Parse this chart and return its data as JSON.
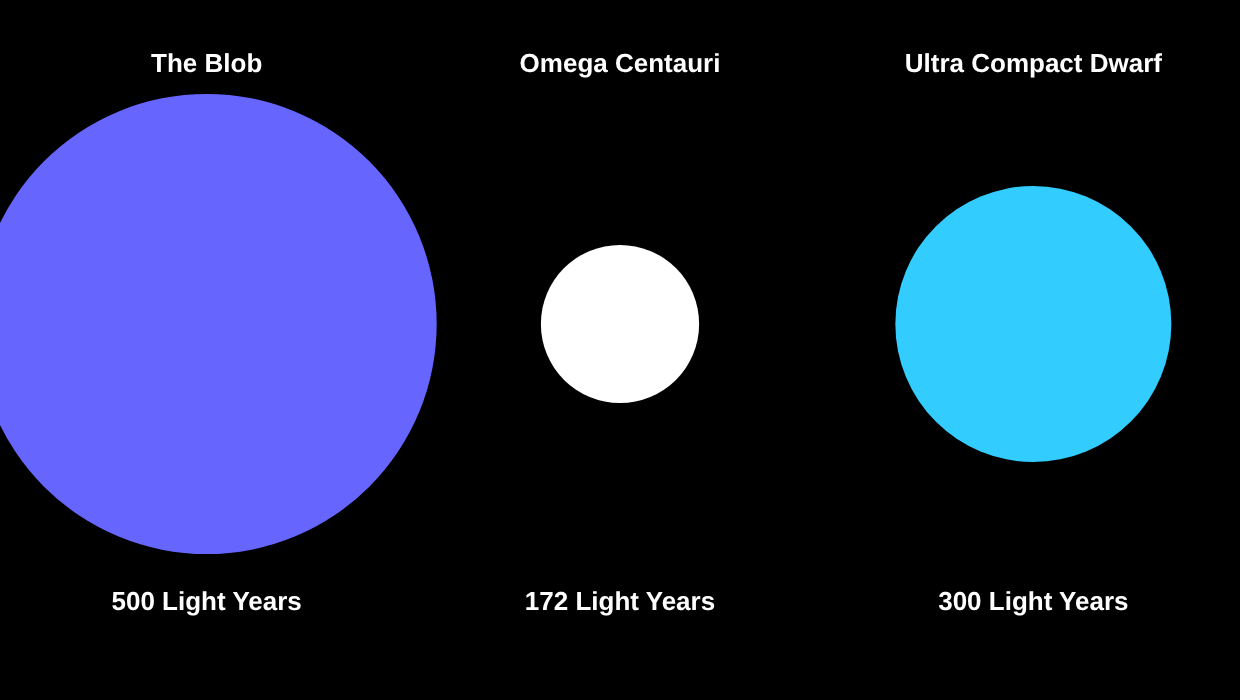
{
  "chart_data": {
    "type": "other",
    "categories": [
      "The Blob",
      "Omega Centauri",
      "Ultra Compact Dwarf"
    ],
    "values": [
      500,
      172,
      300
    ],
    "colors": [
      "#6666ff",
      "#ffffff",
      "#33ccff"
    ],
    "value_labels": [
      "500 Light Years",
      "172 Light Years",
      "300 Light Years"
    ]
  }
}
